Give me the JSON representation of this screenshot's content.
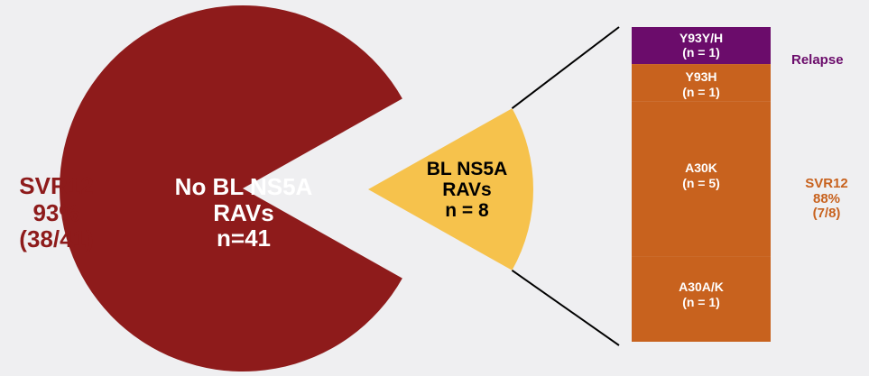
{
  "chart_data": [
    {
      "type": "pie",
      "slices": [
        {
          "label": "No BL NS5A RAVs",
          "value": 41,
          "color": "#8e1b1b"
        },
        {
          "label": "BL NS5A RAVs",
          "value": 8,
          "color": "#f6c24c"
        }
      ],
      "main_label": {
        "line1": "No BL NS5A",
        "line2": "RAVs",
        "line3": "n=41"
      },
      "sub_label": {
        "line1": "BL NS5A",
        "line2": "RAVs",
        "line3": "n = 8"
      },
      "svr_left": {
        "line1": "SVR12",
        "line2": "93%",
        "line3": "(38/41)"
      }
    },
    {
      "type": "bar",
      "stacked": true,
      "segments": [
        {
          "label": "Y93Y/H",
          "n_text": "(n = 1)",
          "value": 1,
          "color": "#6b0c6b",
          "outcome": "Relapse"
        },
        {
          "label": "Y93H",
          "n_text": "(n = 1)",
          "value": 1,
          "color": "#c8621e"
        },
        {
          "label": "A30K",
          "n_text": "(n = 5)",
          "value": 5,
          "color": "#c8621e"
        },
        {
          "label": "A30A/K",
          "n_text": "(n = 1)",
          "value": 1,
          "color": "#c8621e"
        }
      ],
      "svr_right": {
        "line1": "SVR12",
        "line2": "88%",
        "line3": "(7/8)"
      },
      "relapse_label": "Relapse"
    }
  ]
}
